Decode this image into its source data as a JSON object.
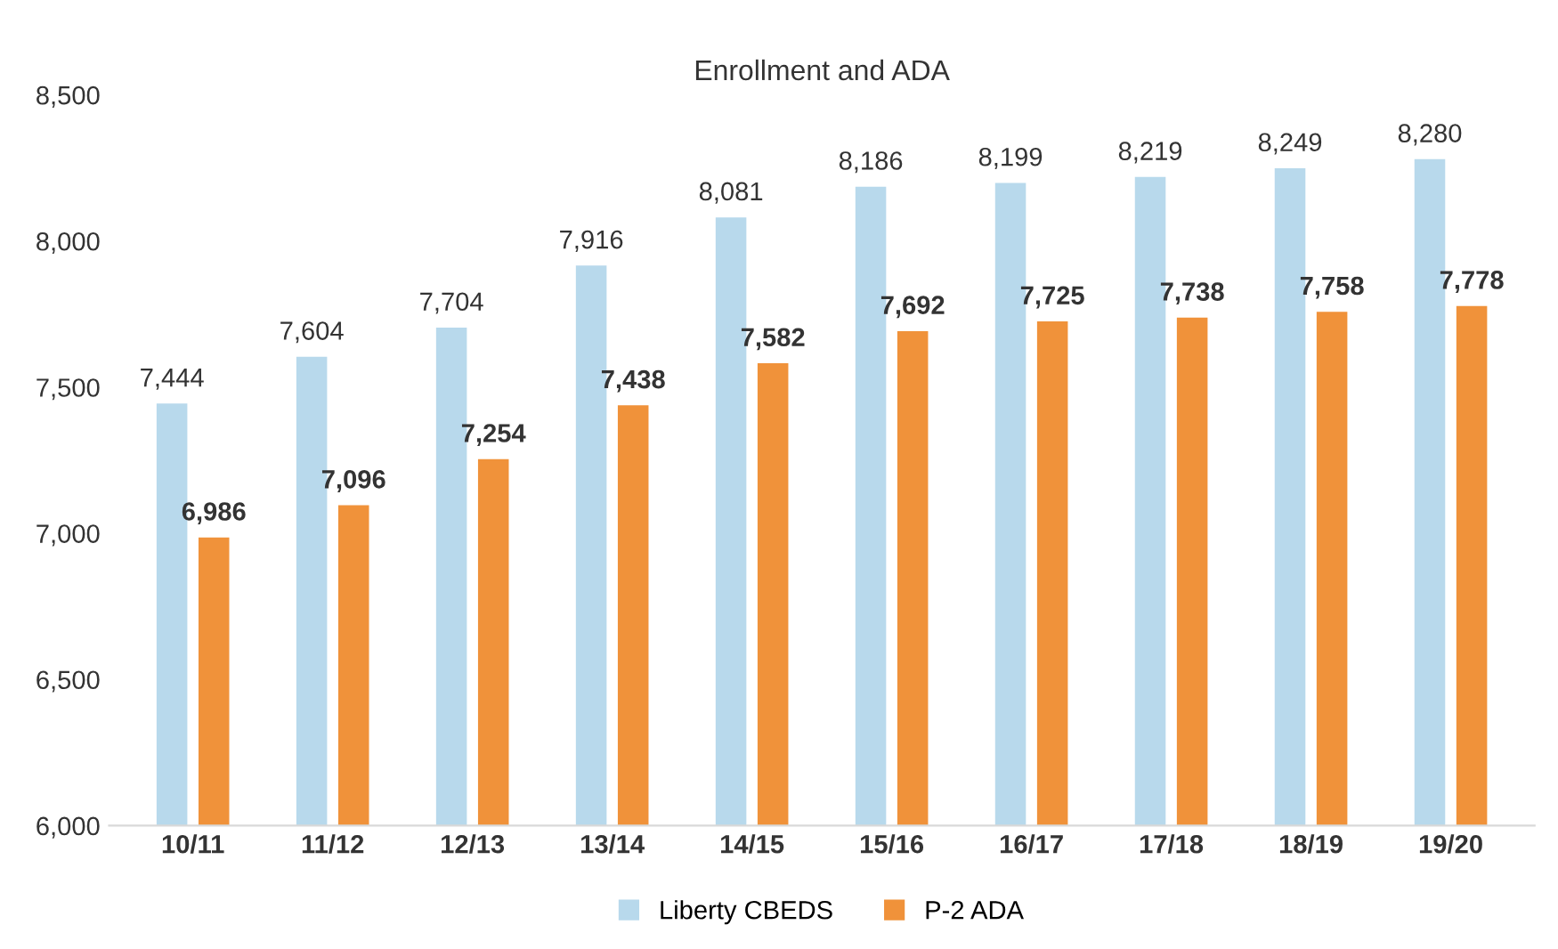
{
  "chart_data": {
    "type": "bar",
    "title": "Enrollment and ADA",
    "categories": [
      "10/11",
      "11/12",
      "12/13",
      "13/14",
      "14/15",
      "15/16",
      "16/17",
      "17/18",
      "18/19",
      "19/20"
    ],
    "series": [
      {
        "name": "Liberty CBEDS",
        "color": "#b8d9ec",
        "values": [
          7444,
          7604,
          7704,
          7916,
          8081,
          8186,
          8199,
          8219,
          8249,
          8280
        ],
        "value_labels": [
          "7,444",
          "7,604",
          "7,704",
          "7,916",
          "8,081",
          "8,186",
          "8,199",
          "8,219",
          "8,249",
          "8,280"
        ]
      },
      {
        "name": "P-2 ADA",
        "color": "#f0923a",
        "values": [
          6986,
          7096,
          7254,
          7438,
          7582,
          7692,
          7725,
          7738,
          7758,
          7778
        ],
        "value_labels": [
          "6,986",
          "7,096",
          "7,254",
          "7,438",
          "7,582",
          "7,692",
          "7,725",
          "7,738",
          "7,758",
          "7,778"
        ]
      }
    ],
    "ylim": [
      6000,
      8500
    ],
    "yticks": [
      {
        "value": 6000,
        "label": "6,000"
      },
      {
        "value": 6500,
        "label": "6,500"
      },
      {
        "value": 7000,
        "label": "7,000"
      },
      {
        "value": 7500,
        "label": "7,500"
      },
      {
        "value": 8000,
        "label": "8,000"
      },
      {
        "value": 8500,
        "label": "8,500"
      }
    ],
    "grid": false,
    "legend": "bottom"
  }
}
